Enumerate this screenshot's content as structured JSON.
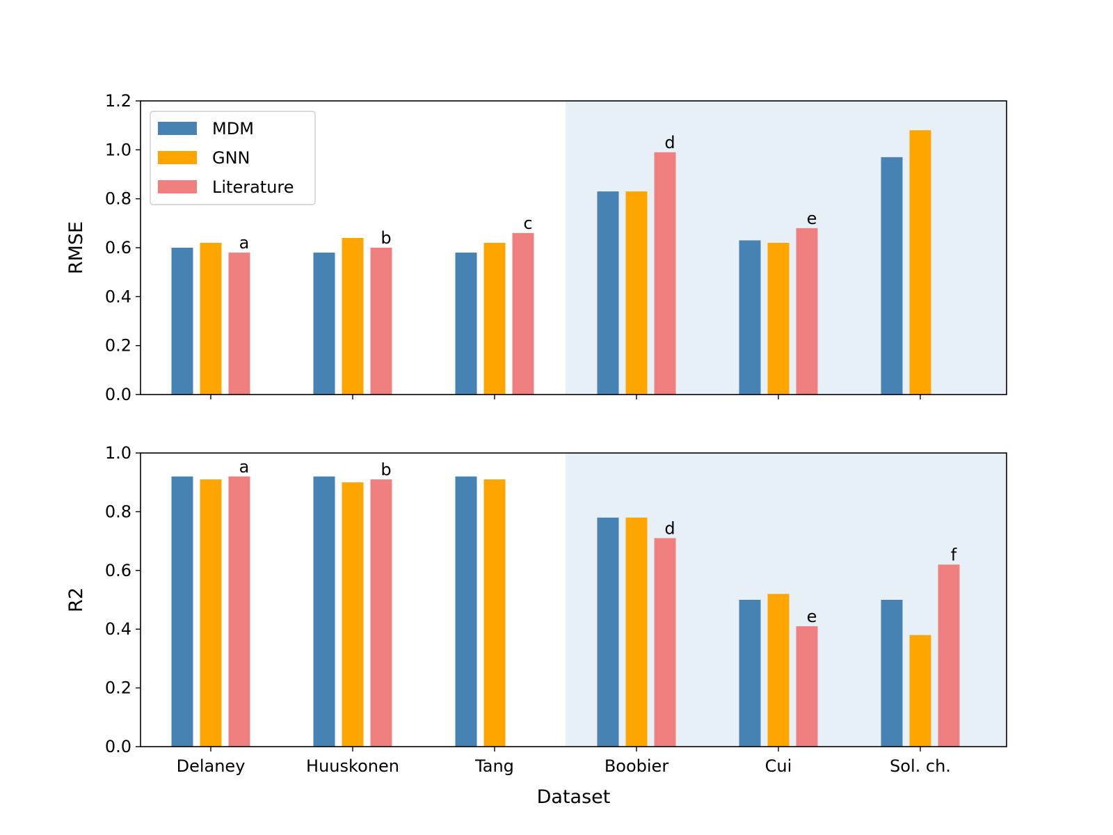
{
  "chart_data": [
    {
      "type": "bar",
      "panel": "top",
      "categories": [
        "Delaney",
        "Huuskonen",
        "Tang",
        "Boobier",
        "Cui",
        "Sol. ch."
      ],
      "series": [
        {
          "name": "MDM",
          "values": [
            0.6,
            0.58,
            0.58,
            0.83,
            0.63,
            0.97
          ]
        },
        {
          "name": "GNN",
          "values": [
            0.62,
            0.64,
            0.62,
            0.83,
            0.62,
            1.08
          ]
        },
        {
          "name": "Literature",
          "values": [
            0.58,
            0.6,
            0.66,
            0.99,
            0.68,
            null
          ]
        }
      ],
      "annotations": [
        "a",
        "b",
        "c",
        "d",
        "e",
        ""
      ],
      "ylabel": "RMSE",
      "xlabel": "",
      "ylim": [
        0,
        1.2
      ],
      "yticks": [
        "0.0",
        "0.2",
        "0.4",
        "0.6",
        "0.8",
        "1.0",
        "1.2"
      ],
      "yticks_values": [
        0,
        0.2,
        0.4,
        0.6,
        0.8,
        1.0,
        1.2
      ],
      "shaded_from_category": "Boobier",
      "legend": {
        "entries": [
          "MDM",
          "GNN",
          "Literature"
        ],
        "placement": "upper-left"
      }
    },
    {
      "type": "bar",
      "panel": "bottom",
      "categories": [
        "Delaney",
        "Huuskonen",
        "Tang",
        "Boobier",
        "Cui",
        "Sol. ch."
      ],
      "series": [
        {
          "name": "MDM",
          "values": [
            0.92,
            0.92,
            0.92,
            0.78,
            0.5,
            0.5
          ]
        },
        {
          "name": "GNN",
          "values": [
            0.91,
            0.9,
            0.91,
            0.78,
            0.52,
            0.38
          ]
        },
        {
          "name": "Literature",
          "values": [
            0.92,
            0.91,
            null,
            0.71,
            0.41,
            0.62
          ]
        }
      ],
      "annotations": [
        "a",
        "b",
        "",
        "d",
        "e",
        "f"
      ],
      "ylabel": "R2",
      "xlabel": "Dataset",
      "ylim": [
        0,
        1.0
      ],
      "yticks": [
        "0.0",
        "0.2",
        "0.4",
        "0.6",
        "0.8",
        "1.0"
      ],
      "yticks_values": [
        0,
        0.2,
        0.4,
        0.6,
        0.8,
        1.0
      ],
      "shaded_from_category": "Boobier"
    }
  ],
  "colors": {
    "MDM": "#4682b4",
    "GNN": "#ffa500",
    "Literature": "#f08080",
    "shade": "#e8f0f7"
  }
}
